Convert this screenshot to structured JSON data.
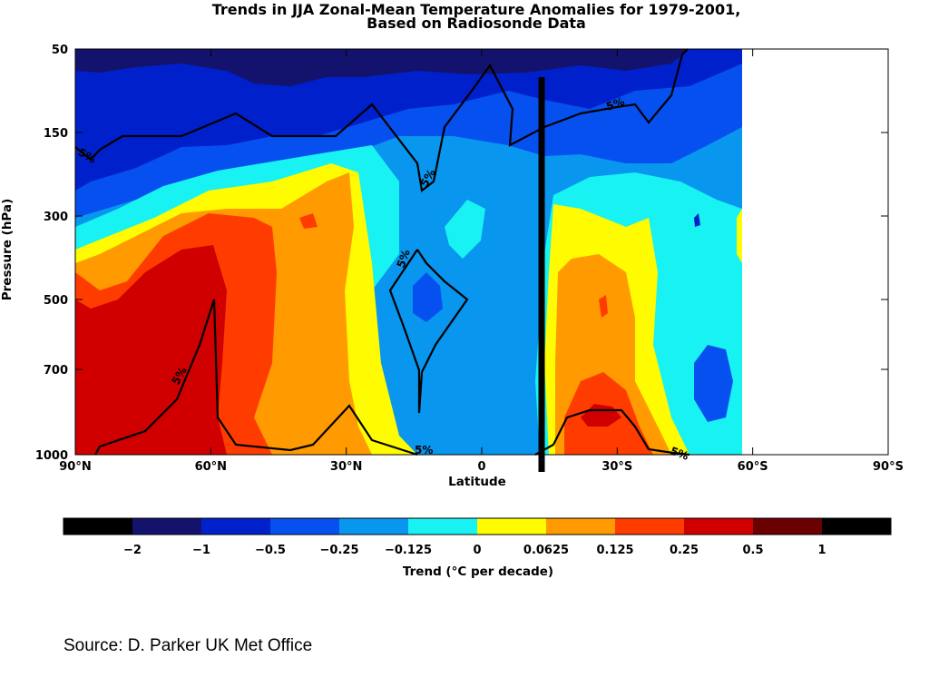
{
  "chart_data": {
    "type": "heatmap",
    "title": "Trends in JJA Zonal-Mean Temperature Anomalies for 1979-2001,",
    "subtitle": "Based on Radiosonde Data",
    "xlabel": "Latitude",
    "ylabel": "Pressure (hPa)",
    "x_ticks": [
      "90°N",
      "60°N",
      "30°N",
      "0",
      "30°S",
      "60°S",
      "90°S"
    ],
    "x_tick_values": [
      -90,
      -60,
      -30,
      0,
      30,
      60,
      90
    ],
    "xlim": [
      -90,
      90
    ],
    "y_ticks": [
      "50",
      "150",
      "300",
      "500",
      "700",
      "1000"
    ],
    "y_tick_values": [
      50,
      150,
      300,
      500,
      700,
      1000
    ],
    "ylim": [
      50,
      1000
    ],
    "data_coverage_lat": [
      -90,
      60
    ],
    "vertical_marker_lat": 14,
    "contour_label": "5%",
    "colorbar": {
      "title": "Trend (°C per decade)",
      "tick_labels": [
        "-2",
        "-1",
        "-0.5",
        "-0.25",
        "-0.125",
        "0",
        "0.0625",
        "0.125",
        "0.25",
        "0.5",
        "1"
      ],
      "colors": [
        "#000000",
        "#13136e",
        "#0020cc",
        "#0650f0",
        "#0896ee",
        "#19f2f2",
        "#fffb00",
        "#ff9a00",
        "#ff3c00",
        "#d10000",
        "#6b0000",
        "#000000"
      ]
    },
    "grid": false,
    "legend": "colorbar-bottom"
  },
  "source": "Source: D. Parker UK Met Office"
}
